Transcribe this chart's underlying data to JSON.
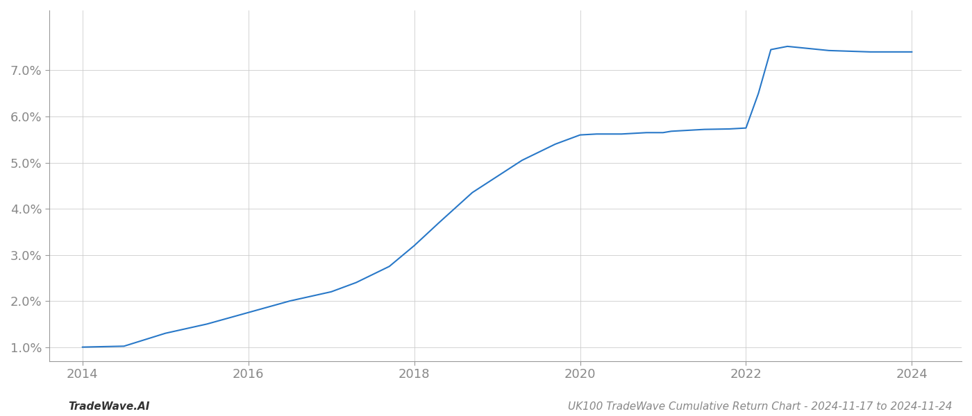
{
  "x": [
    2014.0,
    2014.5,
    2015.0,
    2015.5,
    2016.0,
    2016.5,
    2017.0,
    2017.3,
    2017.7,
    2018.0,
    2018.3,
    2018.7,
    2019.0,
    2019.3,
    2019.7,
    2020.0,
    2020.2,
    2020.5,
    2020.8,
    2021.0,
    2021.1,
    2021.5,
    2021.8,
    2022.0,
    2022.15,
    2022.3,
    2022.5,
    2023.0,
    2023.5,
    2024.0
  ],
  "y": [
    1.0,
    1.02,
    1.3,
    1.5,
    1.75,
    2.0,
    2.2,
    2.4,
    2.75,
    3.2,
    3.7,
    4.35,
    4.7,
    5.05,
    5.4,
    5.6,
    5.62,
    5.62,
    5.65,
    5.65,
    5.68,
    5.72,
    5.73,
    5.75,
    6.5,
    7.45,
    7.52,
    7.43,
    7.4,
    7.4
  ],
  "line_color": "#2878C8",
  "line_width": 1.5,
  "background_color": "#ffffff",
  "grid_color": "#cccccc",
  "grid_linestyle": "-",
  "xlim": [
    2013.6,
    2024.6
  ],
  "ylim": [
    0.7,
    8.3
  ],
  "yticks": [
    1.0,
    2.0,
    3.0,
    4.0,
    5.0,
    6.0,
    7.0
  ],
  "xticks": [
    2014,
    2016,
    2018,
    2020,
    2022,
    2024
  ],
  "footer_left": "TradeWave.AI",
  "footer_right": "UK100 TradeWave Cumulative Return Chart - 2024-11-17 to 2024-11-24",
  "footer_fontsize": 11,
  "tick_fontsize": 13,
  "tick_color": "#888888"
}
